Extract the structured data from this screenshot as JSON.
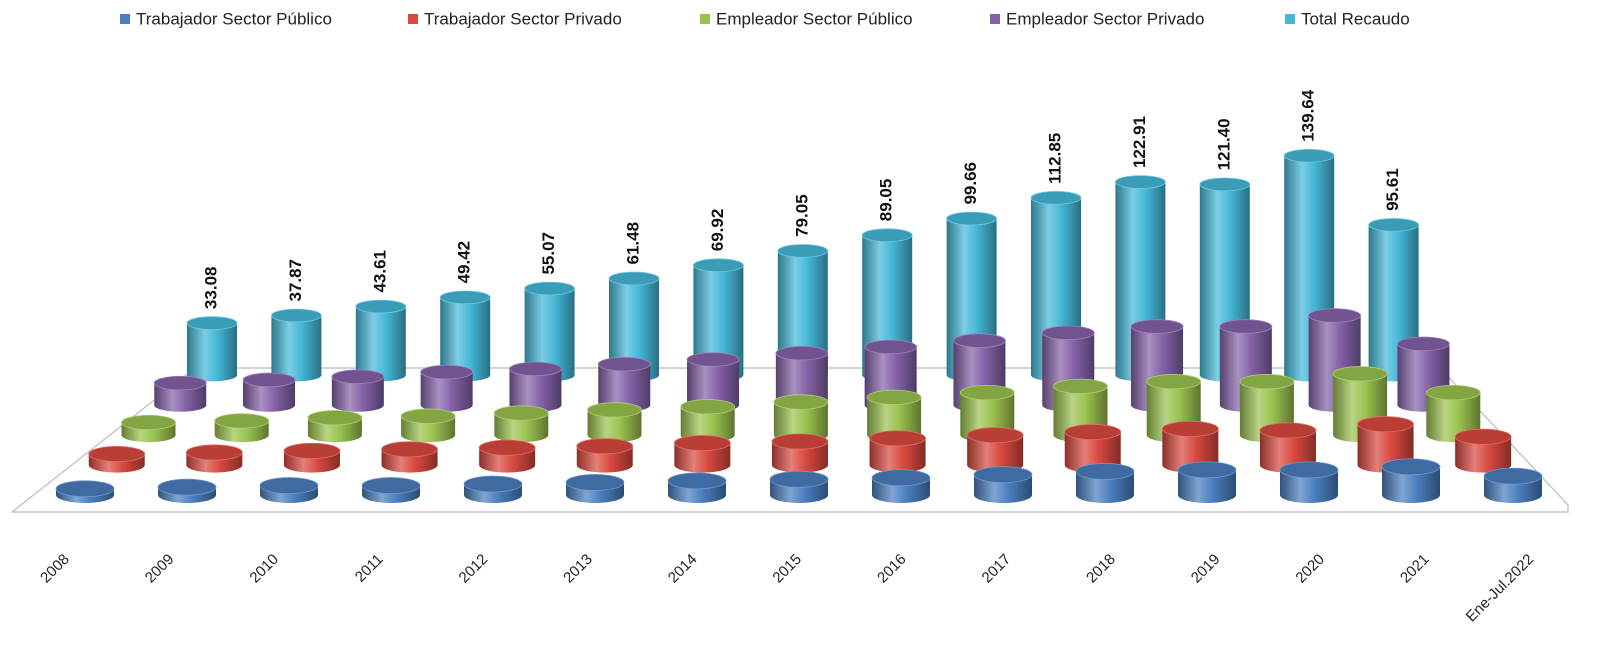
{
  "chart_data": {
    "type": "bar3d",
    "categories": [
      "2008",
      "2009",
      "2010",
      "2011",
      "2012",
      "2013",
      "2014",
      "2015",
      "2016",
      "2017",
      "2018",
      "2019",
      "2020",
      "2021",
      "Ene-Jul.2022"
    ],
    "series": [
      {
        "name": "Trabajador Sector Público",
        "color": "#4a7ebf",
        "values": [
          4,
          5,
          6,
          6,
          7,
          8,
          9,
          10,
          11,
          13,
          15,
          16,
          16,
          18,
          12
        ]
      },
      {
        "name": "Trabajador Sector Privado",
        "color": "#d9493f",
        "values": [
          7,
          8,
          9,
          10,
          11,
          12,
          14,
          15,
          17,
          19,
          21,
          23,
          22,
          26,
          18
        ]
      },
      {
        "name": "Empleador Sector Público",
        "color": "#9bc24f",
        "values": [
          8,
          9,
          11,
          12,
          14,
          16,
          18,
          21,
          24,
          27,
          31,
          34,
          34,
          39,
          27
        ]
      },
      {
        "name": "Empleador  Sector Privado",
        "color": "#8462a8",
        "values": [
          14,
          16,
          18,
          21,
          23,
          26,
          29,
          33,
          37,
          41,
          46,
          50,
          50,
          57,
          39
        ]
      },
      {
        "name": "Total Recaudo",
        "color": "#45b8d8",
        "values": [
          33.08,
          37.87,
          43.61,
          49.42,
          55.07,
          61.48,
          69.92,
          79.05,
          89.05,
          99.66,
          112.85,
          122.91,
          121.4,
          139.64,
          95.61
        ],
        "value_labels": [
          "33.08",
          "37.87",
          "43.61",
          "49.42",
          "55.07",
          "61.48",
          "69.92",
          "79.05",
          "89.05",
          "99.66",
          "112.85",
          "122.91",
          "121.40",
          "139.64",
          "95.61"
        ]
      }
    ]
  }
}
